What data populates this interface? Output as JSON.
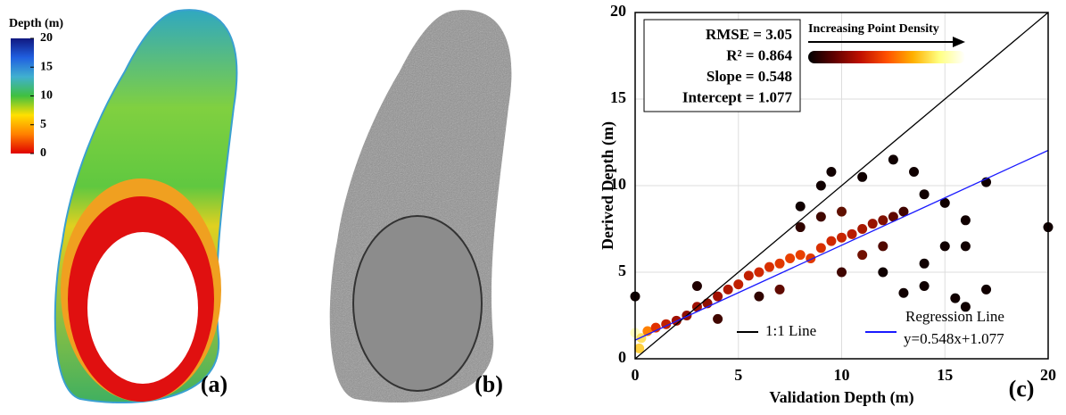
{
  "panel_labels": [
    "(a)",
    "(b)",
    "(c)"
  ],
  "chart_data": [
    {
      "type": "colorbar",
      "title": "Depth (m)",
      "ylim": [
        0,
        20
      ],
      "yticks": [
        0,
        5,
        10,
        15,
        20
      ],
      "colors": [
        "#e00000",
        "#ff8000",
        "#ffe000",
        "#40c040",
        "#40b0d0",
        "#2060e0",
        "#101880"
      ]
    },
    {
      "type": "scatter",
      "xlabel": "Validation Depth (m)",
      "ylabel": "Derived Depth (m)",
      "xlim": [
        0,
        20
      ],
      "ylim": [
        0,
        20
      ],
      "xticks": [
        0,
        5,
        10,
        15,
        20
      ],
      "yticks": [
        0,
        5,
        10,
        15,
        20
      ],
      "grid": true,
      "stats": [
        "RMSE = 3.05",
        "R² = 0.864",
        "Slope = 0.548",
        "Intercept = 1.077"
      ],
      "density_label": "Increasing Point Density",
      "density_colors": [
        "#000000",
        "#600000",
        "#c01000",
        "#ff5000",
        "#ffb000",
        "#ffff80",
        "#ffffff"
      ],
      "points": {
        "x": [
          0,
          0.3,
          0.2,
          0.6,
          1,
          1.5,
          2,
          2.5,
          3,
          3.5,
          4,
          4.5,
          5,
          5.5,
          6,
          6.5,
          7,
          7.5,
          8,
          8.5,
          9,
          9.5,
          10,
          10.5,
          11,
          11.5,
          12,
          12.5,
          13,
          10,
          9,
          8,
          11,
          12,
          10,
          7,
          6,
          4,
          3,
          0,
          8,
          9,
          9.5,
          11,
          12.5,
          13.5,
          14,
          15,
          16,
          17,
          20,
          15,
          16,
          17,
          14,
          15.5,
          16,
          13,
          14,
          12
        ],
        "values": [
          1.5,
          1.2,
          0.6,
          1.6,
          1.8,
          2,
          2.2,
          2.5,
          3,
          3.2,
          3.6,
          4,
          4.3,
          4.8,
          5,
          5.3,
          5.5,
          5.8,
          6,
          5.8,
          6.4,
          6.8,
          7,
          7.2,
          7.5,
          7.8,
          8,
          8.2,
          8.5,
          8.5,
          8.2,
          7.6,
          6,
          6.5,
          5,
          4,
          3.6,
          2.3,
          4.2,
          3.6,
          8.8,
          10,
          10.8,
          10.5,
          11.5,
          10.8,
          9.5,
          9,
          8,
          10.2,
          7.6,
          6.5,
          6.5,
          4,
          4.2,
          3.5,
          3,
          3.8,
          5.5,
          5
        ],
        "colors": [
          "#ffffc0",
          "#ffe060",
          "#ffd040",
          "#ff8000",
          "#e03000",
          "#c02000",
          "#a01000",
          "#901000",
          "#a01000",
          "#901000",
          "#a01000",
          "#b01800",
          "#c02000",
          "#c02000",
          "#d02800",
          "#d83000",
          "#e03800",
          "#e84000",
          "#e84000",
          "#e03800",
          "#d83000",
          "#d02800",
          "#c82400",
          "#b81c00",
          "#a81800",
          "#981400",
          "#801000",
          "#600800",
          "#400400",
          "#601000",
          "#400800",
          "#300400",
          "#701000",
          "#500800",
          "#400600",
          "#600a00",
          "#300400",
          "#400600",
          "#200000",
          "#100000",
          "#100000",
          "#100000",
          "#100000",
          "#100000",
          "#100000",
          "#100000",
          "#100000",
          "#100000",
          "#100000",
          "#100000",
          "#100000",
          "#100000",
          "#100000",
          "#100000",
          "#100000",
          "#100000",
          "#100000",
          "#100000",
          "#100000",
          "#100000"
        ]
      },
      "series": [
        {
          "name": "1:1 Line",
          "color": "#000000",
          "x": [
            0,
            20
          ],
          "values": [
            0,
            20
          ]
        },
        {
          "name": "Regression Line",
          "equation": "y=0.548x+1.077",
          "color": "#1a1aff",
          "x": [
            0,
            20
          ],
          "values": [
            1.077,
            12.037
          ]
        }
      ]
    }
  ]
}
